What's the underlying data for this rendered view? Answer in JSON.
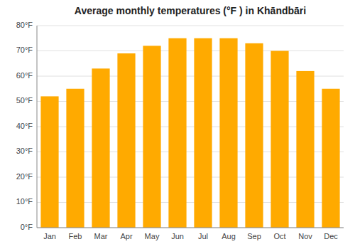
{
  "chart_data": {
    "type": "bar",
    "title": "Average monthly temperatures (°F ) in Khāndbāri",
    "categories": [
      "Jan",
      "Feb",
      "Mar",
      "Apr",
      "May",
      "Jun",
      "Jul",
      "Aug",
      "Sep",
      "Oct",
      "Nov",
      "Dec"
    ],
    "values": [
      52,
      55,
      63,
      69,
      72,
      75,
      75,
      75,
      73,
      70,
      62,
      55
    ],
    "color": "#FFAA00",
    "ylim": [
      0,
      80
    ],
    "yticks": [
      {
        "value": 0,
        "label": "0°F"
      },
      {
        "value": 10,
        "label": "10°F"
      },
      {
        "value": 20,
        "label": "20°F"
      },
      {
        "value": 30,
        "label": "30°F"
      },
      {
        "value": 40,
        "label": "40°F"
      },
      {
        "value": 50,
        "label": "50°F"
      },
      {
        "value": 60,
        "label": "60°F"
      },
      {
        "value": 70,
        "label": "70°F"
      },
      {
        "value": 80,
        "label": "80°F"
      }
    ],
    "grid": true
  }
}
